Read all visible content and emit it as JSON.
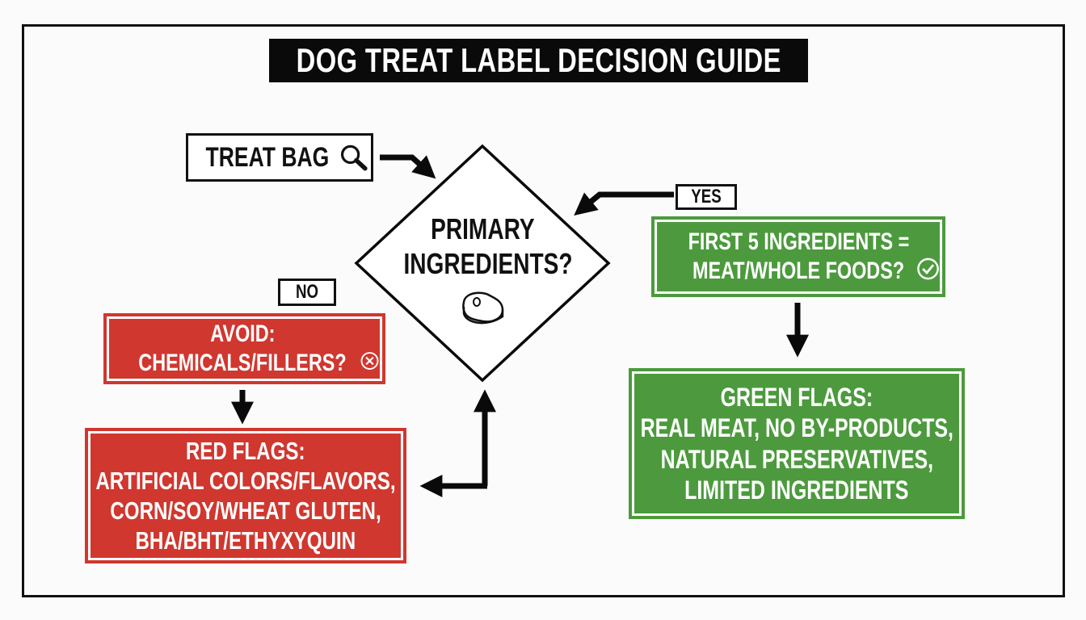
{
  "title": "DOG TREAT LABEL DECISION GUIDE",
  "start": {
    "label": "TREAT BAG",
    "icon": "magnifying-glass-icon"
  },
  "decision": {
    "lines": [
      "PRIMARY",
      "INGREDIENTS?"
    ],
    "icon": "steak-icon"
  },
  "yes_label": "YES",
  "no_label": "NO",
  "yes_question": {
    "lines": [
      "FIRST 5 INGREDIENTS =",
      "MEAT/WHOLE FOODS?"
    ],
    "icon": "check-circle-icon"
  },
  "no_question": {
    "lines": [
      "AVOID:",
      "CHEMICALS/FILLERS?"
    ],
    "icon": "x-circle-icon"
  },
  "green_flags": {
    "heading": "GREEN FLAGS:",
    "lines": [
      "REAL MEAT, NO BY-PRODUCTS,",
      "NATURAL PRESERVATIVES,",
      "LIMITED INGREDIENTS"
    ]
  },
  "red_flags": {
    "heading": "RED FLAGS:",
    "lines": [
      "ARTIFICIAL COLORS/FLAVORS,",
      "CORN/SOY/WHEAT GLUTEN,",
      "BHA/BHT/ETHYXYQUIN"
    ]
  },
  "colors": {
    "red": "#d0372f",
    "green": "#4c9a3d",
    "black": "#0a0a0a"
  }
}
